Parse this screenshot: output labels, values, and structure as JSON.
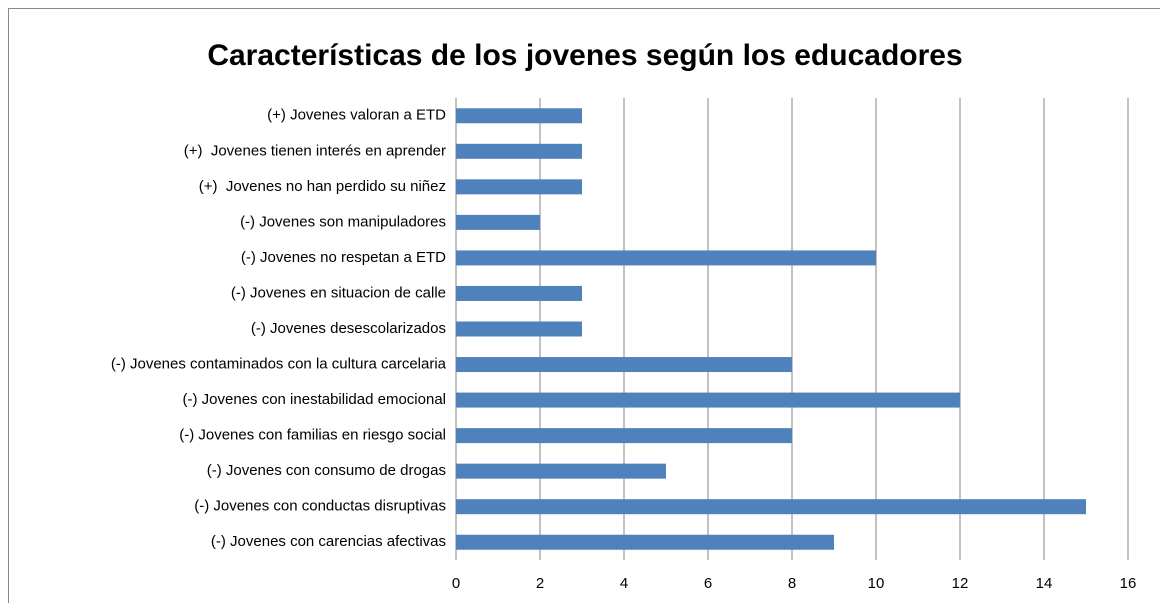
{
  "chart_data": {
    "type": "bar",
    "orientation": "horizontal",
    "title": "Características de los jovenes según los educadores",
    "categories": [
      "(+) Jovenes valoran a ETD",
      "(+)  Jovenes tienen interés en aprender",
      "(+)  Jovenes no han perdido su niñez",
      "(-) Jovenes son manipuladores",
      "(-) Jovenes no respetan a ETD",
      "(-) Jovenes en situacion de calle",
      "(-) Jovenes desescolarizados",
      "(-) Jovenes contaminados con la cultura carcelaria",
      "(-) Jovenes con inestabilidad emocional",
      "(-) Jovenes con familias en riesgo social",
      "(-) Jovenes con consumo de drogas",
      "(-) Jovenes con conductas disruptivas",
      "(-) Jovenes con carencias afectivas"
    ],
    "values": [
      3,
      3,
      3,
      2,
      10,
      3,
      3,
      8,
      12,
      8,
      5,
      15,
      9
    ],
    "color": "#4f81bd",
    "xlim": [
      0,
      16
    ],
    "xticks": [
      0,
      2,
      4,
      6,
      8,
      10,
      12,
      14,
      16
    ],
    "grid": true
  }
}
